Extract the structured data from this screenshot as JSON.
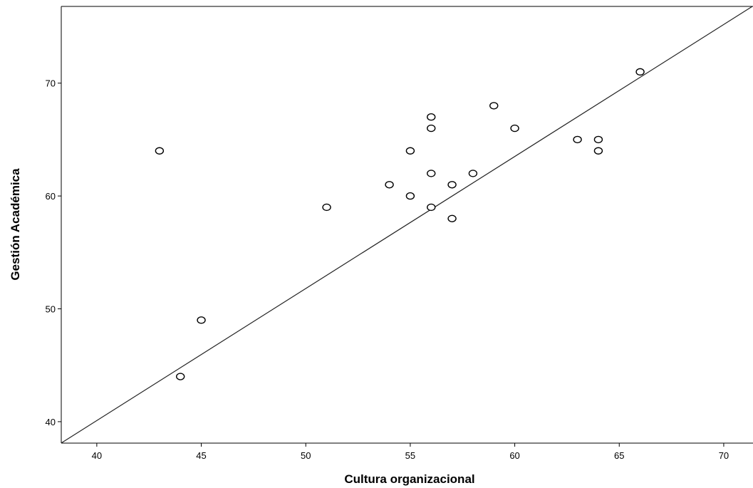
{
  "chart_data": {
    "type": "scatter",
    "xlabel": "Cultura organizacional",
    "ylabel": "Gestión Académica",
    "xlim": [
      38.3,
      71.4
    ],
    "ylim": [
      38.1,
      76.8
    ],
    "x_ticks": [
      40,
      45,
      50,
      55,
      60,
      65,
      70
    ],
    "y_ticks": [
      40,
      50,
      60,
      70
    ],
    "grid": false,
    "marker": "open-circle",
    "points": [
      {
        "x": 43,
        "y": 64
      },
      {
        "x": 44,
        "y": 44
      },
      {
        "x": 45,
        "y": 49
      },
      {
        "x": 51,
        "y": 59
      },
      {
        "x": 54,
        "y": 61
      },
      {
        "x": 55,
        "y": 64
      },
      {
        "x": 55,
        "y": 60
      },
      {
        "x": 56,
        "y": 67
      },
      {
        "x": 56,
        "y": 66
      },
      {
        "x": 56,
        "y": 62
      },
      {
        "x": 56,
        "y": 59
      },
      {
        "x": 57,
        "y": 61
      },
      {
        "x": 57,
        "y": 58
      },
      {
        "x": 58,
        "y": 62
      },
      {
        "x": 59,
        "y": 68
      },
      {
        "x": 60,
        "y": 66
      },
      {
        "x": 63,
        "y": 65
      },
      {
        "x": 64,
        "y": 65
      },
      {
        "x": 64,
        "y": 64
      },
      {
        "x": 66,
        "y": 71
      }
    ],
    "reference_line": {
      "type": "linear",
      "slope": 1.17,
      "intercept": -6.7
    }
  },
  "colors": {
    "background": "#ffffff",
    "axis": "#000000",
    "marker_stroke": "#000000",
    "marker_fill": "#ffffff",
    "line": "#222222"
  }
}
